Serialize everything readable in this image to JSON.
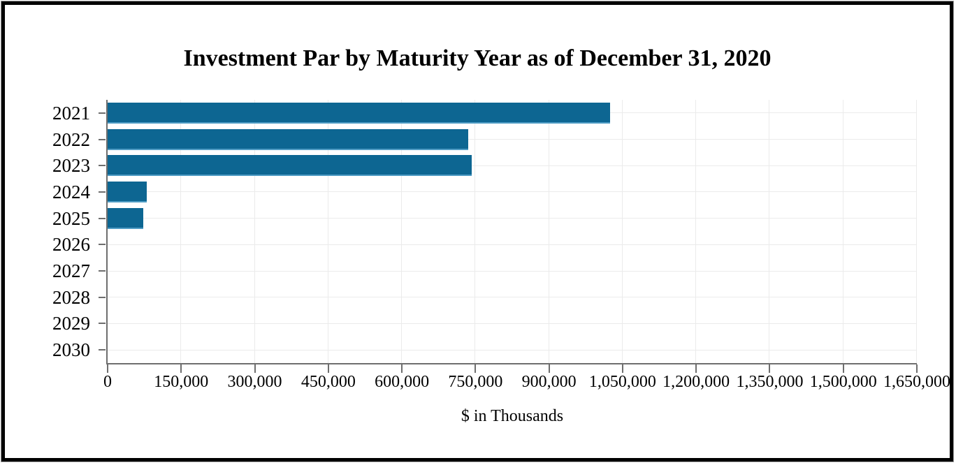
{
  "figure": {
    "title": "Investment Par by Maturity Year as of December 31, 2020",
    "xlabel": "$ in Thousands"
  },
  "chart_data": {
    "type": "bar",
    "orientation": "horizontal",
    "title": "Investment Par by Maturity Year as of December 31, 2020",
    "xlabel": "$ in Thousands",
    "ylabel": "",
    "categories": [
      "2021",
      "2022",
      "2023",
      "2024",
      "2025",
      "2026",
      "2027",
      "2028",
      "2029",
      "2030"
    ],
    "values": [
      1025000,
      735000,
      743000,
      80000,
      72000,
      0,
      0,
      0,
      0,
      0
    ],
    "unit": "$ in Thousands",
    "xlim": [
      0,
      1650000
    ],
    "xtick_interval": 150000,
    "xtick_labels": [
      "0",
      "150,000",
      "300,000",
      "450,000",
      "600,000",
      "750,000",
      "900,000",
      "1,050,000",
      "1,200,000",
      "1,350,000",
      "1,500,000",
      "1,650,000"
    ],
    "grid": true,
    "legend_position": "none",
    "colors": {
      "bar_fill": "#0d6692",
      "bar_bottom_edge": "#4f9cc4",
      "gridline": "#ebebeb",
      "axis": "#6e6e6e",
      "text": "#000000"
    }
  }
}
